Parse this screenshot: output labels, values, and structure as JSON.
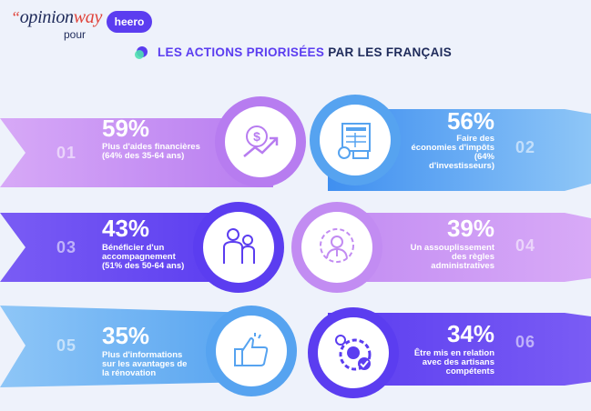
{
  "header": {
    "brand_opinionway_quote": "“",
    "brand_opinionway_opinion": "opinion",
    "brand_opinionway_way": "way",
    "pour": "pour",
    "brand_heero": "heero",
    "title_highlight": "LES ACTIONS PRIORISÉES",
    "title_rest": " PAR LES FRANÇAIS"
  },
  "items": [
    {
      "num": "01",
      "pct": "59%",
      "desc1": "Plus d'aides financières",
      "desc2": "(64% des 35-64 ans)",
      "icon": "dollar-growth-icon"
    },
    {
      "num": "02",
      "pct": "56%",
      "desc1": "Faire des",
      "desc2": "économies d'impôts",
      "desc3": "(64%",
      "desc4": "d'investisseurs)",
      "icon": "tax-form-icon"
    },
    {
      "num": "03",
      "pct": "43%",
      "desc1": "Bénéficier d'un",
      "desc2": "accompagnement",
      "desc3": "(51% des 50-64 ans)",
      "icon": "people-icon"
    },
    {
      "num": "04",
      "pct": "39%",
      "desc1": "Un assouplissement",
      "desc2": "des règles",
      "desc3": "administratives",
      "icon": "gear-person-icon"
    },
    {
      "num": "05",
      "pct": "35%",
      "desc1": "Plus d'informations",
      "desc2": "sur les avantages de",
      "desc3": "la rénovation",
      "icon": "thumbs-up-icon"
    },
    {
      "num": "06",
      "pct": "34%",
      "desc1": "Être mis en relation",
      "desc2": "avec des artisans",
      "desc3": "compétents",
      "icon": "gear-check-icon"
    }
  ],
  "colors": {
    "purple_light": "#c28cf2",
    "blue": "#56a3f0",
    "indigo": "#5b3df0",
    "navy": "#1e2a5a"
  }
}
